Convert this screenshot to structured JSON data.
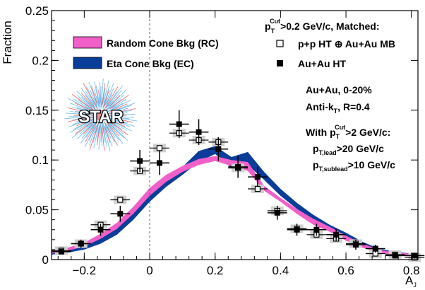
{
  "chart_data": {
    "type": "line",
    "xlabel": "A",
    "xlabel_sub": "J",
    "ylabel": "Fraction",
    "xlim": [
      -0.3,
      0.82
    ],
    "ylim": [
      0,
      0.25
    ],
    "x_ticks": [
      -0.2,
      0,
      0.2,
      0.4,
      0.6,
      0.8
    ],
    "x_tick_labels": [
      "−0.2",
      "0",
      "0.2",
      "0.4",
      "0.6",
      "0.8"
    ],
    "y_ticks": [
      0,
      0.05,
      0.1,
      0.15,
      0.2,
      0.25
    ],
    "y_tick_labels": [
      "0",
      "0.05",
      "0.1",
      "0.15",
      "0.2",
      "0.25"
    ],
    "grid": false,
    "reference_line_x": 0,
    "series": [
      {
        "name": "Random Cone Bkg (RC)",
        "style": "band",
        "color": "#f060c8",
        "x": [
          -0.3,
          -0.25,
          -0.2,
          -0.15,
          -0.1,
          -0.05,
          0.0,
          0.05,
          0.1,
          0.15,
          0.2,
          0.25,
          0.3,
          0.35,
          0.4,
          0.45,
          0.5,
          0.55,
          0.6,
          0.65,
          0.7,
          0.75,
          0.8
        ],
        "y_low": [
          0.006,
          0.009,
          0.013,
          0.021,
          0.031,
          0.046,
          0.064,
          0.078,
          0.088,
          0.095,
          0.099,
          0.094,
          0.089,
          0.069,
          0.058,
          0.046,
          0.035,
          0.028,
          0.019,
          0.012,
          0.007,
          0.004,
          0.003
        ],
        "y_high": [
          0.009,
          0.012,
          0.017,
          0.026,
          0.037,
          0.053,
          0.072,
          0.085,
          0.094,
          0.101,
          0.104,
          0.1,
          0.098,
          0.074,
          0.062,
          0.051,
          0.041,
          0.033,
          0.024,
          0.016,
          0.01,
          0.007,
          0.006
        ]
      },
      {
        "name": "Eta Cone Bkg (EC)",
        "style": "band",
        "color": "#0a3c9a",
        "x": [
          -0.3,
          -0.25,
          -0.2,
          -0.15,
          -0.1,
          -0.05,
          0.0,
          0.05,
          0.1,
          0.15,
          0.2,
          0.25,
          0.3,
          0.35,
          0.4,
          0.45,
          0.5,
          0.55,
          0.6,
          0.65,
          0.7,
          0.75,
          0.8
        ],
        "y_low": [
          0.005,
          0.007,
          0.01,
          0.016,
          0.025,
          0.04,
          0.058,
          0.073,
          0.085,
          0.098,
          0.106,
          0.092,
          0.095,
          0.08,
          0.064,
          0.051,
          0.039,
          0.03,
          0.022,
          0.014,
          0.008,
          0.005,
          0.004
        ],
        "y_high": [
          0.008,
          0.01,
          0.014,
          0.021,
          0.031,
          0.047,
          0.066,
          0.081,
          0.093,
          0.109,
          0.114,
          0.103,
          0.108,
          0.088,
          0.071,
          0.057,
          0.045,
          0.035,
          0.027,
          0.018,
          0.011,
          0.008,
          0.006
        ]
      },
      {
        "name": "p+p HT ⊕ Au+Au MB",
        "style": "open-square",
        "x": [
          -0.27,
          -0.21,
          -0.15,
          -0.09,
          -0.03,
          0.03,
          0.09,
          0.15,
          0.21,
          0.27,
          0.33,
          0.39,
          0.45,
          0.51,
          0.57,
          0.63,
          0.69,
          0.75,
          0.81
        ],
        "y": [
          0.009,
          0.016,
          0.035,
          0.06,
          0.089,
          0.112,
          0.127,
          0.12,
          0.118,
          0.092,
          0.071,
          0.049,
          0.031,
          0.025,
          0.021,
          0.016,
          0.006,
          0.005,
          0.002
        ]
      },
      {
        "name": "Au+Au HT",
        "style": "filled-square",
        "x": [
          -0.27,
          -0.21,
          -0.15,
          -0.09,
          -0.03,
          0.03,
          0.09,
          0.15,
          0.21,
          0.27,
          0.33,
          0.39,
          0.45,
          0.51,
          0.57,
          0.63,
          0.69,
          0.75,
          0.81
        ],
        "y": [
          0.008,
          0.016,
          0.03,
          0.046,
          0.099,
          0.097,
          0.136,
          0.128,
          0.111,
          0.093,
          0.083,
          0.047,
          0.03,
          0.03,
          0.025,
          0.015,
          0.011,
          0.004,
          0.004
        ],
        "yerr": [
          0.002,
          0.004,
          0.006,
          0.008,
          0.011,
          0.012,
          0.014,
          0.013,
          0.012,
          0.011,
          0.01,
          0.007,
          0.006,
          0.006,
          0.006,
          0.005,
          0.004,
          0.003,
          0.003
        ]
      }
    ]
  },
  "legend": {
    "entries": [
      {
        "label": "Random Cone Bkg (RC)",
        "color": "#f060c8"
      },
      {
        "label": "Eta Cone Bkg (EC)",
        "color": "#0a3c9a"
      }
    ],
    "markers_header": {
      "pre": "p",
      "sub": "T",
      "sup": "Cut",
      "post": ">0.2 GeV/c, Matched:"
    },
    "marker_entries": [
      {
        "label": "p+p HT ⊕ Au+Au MB",
        "style": "open-square"
      },
      {
        "label": "Au+Au HT",
        "style": "filled-square"
      }
    ]
  },
  "annotations": {
    "system": "Au+Au, 0-20%",
    "algo": {
      "pre": "Anti-k",
      "sub": "T",
      "post": ", R=0.4"
    },
    "cut": {
      "pre": "With p",
      "sub": "T",
      "sup": "Cut",
      "post": ">2 GeV/c:"
    },
    "lead": {
      "pre": "p",
      "sub": "T,lead",
      "post": ">20 GeV/c"
    },
    "sublead": {
      "pre": "p",
      "sub": "T,sublead",
      "post": ">10 GeV/c"
    }
  },
  "logo": {
    "text": "STAR",
    "colors": {
      "core": "#e03030",
      "rays": "#3aa0e0"
    }
  }
}
